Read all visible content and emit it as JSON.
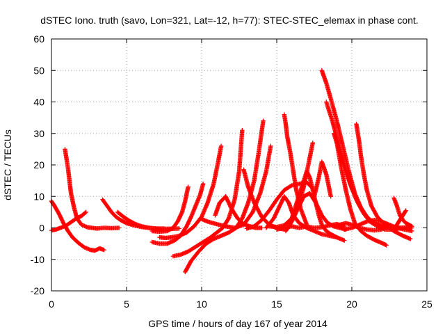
{
  "chart_data": {
    "type": "scatter",
    "title": "dSTEC Iono. truth (savo, Lon=321, Lat=-12, h=77): STEC-STEC_elemax in phase cont.",
    "xlabel": "GPS time / hours of day 167 of year 2014",
    "ylabel": "dSTEC  / TECUs",
    "xlim": [
      0,
      25
    ],
    "ylim": [
      -20,
      60
    ],
    "xticks": [
      0,
      5,
      10,
      15,
      20,
      25
    ],
    "yticks": [
      -20,
      -10,
      0,
      10,
      20,
      30,
      40,
      50,
      60
    ],
    "grid": true,
    "marker": "+",
    "color": "#ff0000",
    "series": [
      {
        "x": [
          0.0,
          0.3,
          0.6,
          1.0,
          1.3,
          1.6,
          2.0,
          2.3
        ],
        "y": [
          -0.8,
          -0.5,
          0.0,
          0.8,
          1.8,
          2.8,
          3.8,
          5.0
        ]
      },
      {
        "x": [
          0.0,
          0.2,
          0.5,
          0.8,
          1.1,
          1.4,
          1.8,
          2.2,
          2.6,
          2.9,
          3.2,
          3.5
        ],
        "y": [
          8.5,
          7.0,
          4.5,
          1.5,
          -1.0,
          -3.0,
          -4.8,
          -6.2,
          -7.0,
          -7.2,
          -6.5,
          -7.0
        ]
      },
      {
        "x": [
          0.9,
          1.0,
          1.1,
          1.2,
          1.3,
          1.5,
          1.7,
          2.0,
          2.4,
          3.0,
          3.5,
          4.0,
          4.5
        ],
        "y": [
          25.0,
          22.0,
          19.0,
          15.0,
          11.0,
          6.5,
          3.0,
          1.0,
          0.2,
          -0.2,
          0.0,
          -0.1,
          0.0
        ]
      },
      {
        "x": [
          3.4,
          3.7,
          4.0,
          4.3,
          4.6,
          5.0,
          5.5,
          6.0,
          6.5,
          7.0,
          7.5,
          8.0,
          8.5
        ],
        "y": [
          9.0,
          7.0,
          5.0,
          3.5,
          2.5,
          1.5,
          0.8,
          0.3,
          0.0,
          -0.2,
          -0.3,
          -0.3,
          -0.2
        ]
      },
      {
        "x": [
          4.4,
          4.8,
          5.2,
          5.6,
          6.0,
          6.5,
          7.0,
          7.5
        ],
        "y": [
          5.0,
          3.5,
          2.2,
          1.2,
          0.5,
          0.0,
          -0.3,
          -0.2
        ]
      },
      {
        "x": [
          6.7,
          7.2,
          7.7,
          8.1,
          8.4,
          8.7,
          8.9,
          9.1
        ],
        "y": [
          -1.0,
          -1.2,
          -1.0,
          0.0,
          2.0,
          5.0,
          8.5,
          13.0
        ]
      },
      {
        "x": [
          6.7,
          7.2,
          7.7,
          8.2,
          8.6,
          9.0,
          9.3,
          9.6,
          9.9,
          10.1
        ],
        "y": [
          -4.5,
          -5.0,
          -5.0,
          -4.0,
          -2.5,
          0.5,
          3.5,
          7.0,
          10.5,
          14.0
        ]
      },
      {
        "x": [
          7.2,
          7.6,
          8.0,
          8.5,
          9.0,
          9.5,
          10.0,
          10.4,
          10.8,
          11.1,
          11.3
        ],
        "y": [
          -3.0,
          -3.2,
          -3.0,
          -2.5,
          -1.5,
          0.5,
          3.5,
          8.0,
          14.0,
          21.0,
          26.0
        ]
      },
      {
        "x": [
          8.1,
          8.6,
          9.1,
          9.6,
          10.1,
          10.6,
          11.0,
          11.4,
          11.8,
          12.2,
          12.5,
          12.7
        ],
        "y": [
          -9.0,
          -8.5,
          -7.5,
          -6.0,
          -4.5,
          -3.0,
          -1.5,
          0.0,
          3.0,
          9.0,
          18.0,
          31.0
        ]
      },
      {
        "x": [
          8.9,
          9.3,
          9.8,
          10.3,
          10.8,
          11.3,
          11.8,
          12.3,
          12.7,
          13.1,
          13.5,
          13.8,
          14.1
        ],
        "y": [
          -14.0,
          -10.5,
          -7.5,
          -5.0,
          -3.5,
          -2.5,
          -1.5,
          0.0,
          3.0,
          8.0,
          15.0,
          24.0,
          34.0
        ]
      },
      {
        "x": [
          9.9,
          10.4,
          11.0,
          11.6,
          12.2,
          12.8,
          13.4,
          13.9,
          14.3,
          14.6
        ],
        "y": [
          3.0,
          2.0,
          1.2,
          0.5,
          0.0,
          1.0,
          5.0,
          11.0,
          18.0,
          26.0
        ]
      },
      {
        "x": [
          10.9,
          11.2,
          11.6,
          12.0,
          12.4,
          12.8,
          13.2,
          13.6,
          14.0
        ],
        "y": [
          4.0,
          8.0,
          10.0,
          6.0,
          3.0,
          1.2,
          0.5,
          0.0,
          0.0
        ]
      },
      {
        "x": [
          12.8,
          13.1,
          13.5,
          14.0,
          14.5,
          15.0,
          15.5
        ],
        "y": [
          18.5,
          13.0,
          8.0,
          3.5,
          1.0,
          0.0,
          -0.5
        ]
      },
      {
        "x": [
          13.0,
          13.5,
          14.0,
          14.5,
          15.0,
          15.5,
          16.0,
          16.5,
          17.0,
          17.3
        ],
        "y": [
          -0.2,
          0.5,
          2.5,
          5.5,
          9.0,
          12.0,
          13.5,
          14.0,
          14.5,
          13.0
        ]
      },
      {
        "x": [
          14.3,
          14.8,
          15.2,
          15.5,
          15.8,
          16.1,
          16.5,
          17.0,
          17.5,
          18.0,
          18.5,
          19.0
        ],
        "y": [
          0.0,
          3.0,
          7.0,
          10.0,
          8.0,
          4.0,
          1.5,
          0.0,
          -1.0,
          -2.0,
          -2.5,
          -3.0
        ]
      },
      {
        "x": [
          15.5,
          15.6,
          15.7,
          15.9,
          16.1,
          16.3,
          16.6,
          17.0
        ],
        "y": [
          36.0,
          33.0,
          29.0,
          24.0,
          18.0,
          12.0,
          6.0,
          1.0
        ]
      },
      {
        "x": [
          14.5,
          15.0,
          15.5,
          16.0,
          16.5,
          16.8,
          17.1,
          17.4
        ],
        "y": [
          0.5,
          0.3,
          0.8,
          3.0,
          8.0,
          13.0,
          20.0,
          27.0
        ]
      },
      {
        "x": [
          15.0,
          15.5,
          16.0,
          16.5,
          17.0,
          17.5,
          18.0,
          18.5,
          19.0,
          19.5
        ],
        "y": [
          -0.5,
          0.0,
          0.5,
          0.0,
          0.5,
          0.0,
          0.2,
          0.8,
          1.2,
          0.5
        ]
      },
      {
        "x": [
          15.6,
          16.0,
          16.4,
          16.8,
          17.2,
          17.6,
          18.0,
          18.4,
          18.8,
          19.2,
          19.6
        ],
        "y": [
          -1.0,
          2.0,
          6.0,
          10.0,
          11.0,
          8.0,
          4.0,
          1.5,
          0.5,
          0.0,
          -0.5
        ]
      },
      {
        "x": [
          16.0,
          16.2,
          16.4,
          16.6,
          16.8,
          17.0,
          17.2,
          17.4,
          17.6,
          17.8,
          18.0,
          18.3,
          18.6,
          19.0,
          19.5
        ],
        "y": [
          3.0,
          6.0,
          9.0,
          12.0,
          15.0,
          18.0,
          16.0,
          12.0,
          8.0,
          4.0,
          1.0,
          -1.0,
          -2.0,
          -3.0,
          -4.0
        ]
      },
      {
        "x": [
          17.5,
          17.8,
          18.0,
          18.3,
          18.6
        ],
        "y": [
          10.0,
          16.0,
          21.0,
          17.0,
          10.0
        ]
      },
      {
        "x": [
          18.0,
          18.3,
          18.6,
          19.0,
          19.4,
          19.8,
          20.2,
          20.6,
          21.0,
          21.5,
          22.0,
          22.5,
          23.0,
          23.5,
          24.0
        ],
        "y": [
          50.0,
          46.0,
          41.0,
          34.0,
          26.0,
          18.0,
          11.0,
          6.5,
          3.5,
          1.5,
          0.5,
          0.0,
          0.0,
          0.1,
          0.0
        ]
      },
      {
        "x": [
          18.3,
          18.7,
          19.1,
          19.5,
          19.9,
          20.3,
          20.7,
          21.1,
          21.5,
          22.0,
          22.5,
          23.0,
          23.5,
          24.0
        ],
        "y": [
          40.0,
          34.0,
          27.0,
          20.0,
          14.0,
          9.0,
          5.5,
          3.0,
          1.5,
          0.5,
          0.0,
          -0.2,
          0.0,
          0.0
        ]
      },
      {
        "x": [
          18.8,
          19.2,
          19.6,
          20.0,
          20.4,
          20.8,
          21.2,
          21.7,
          22.2,
          22.7,
          23.2
        ],
        "y": [
          30.0,
          24.0,
          18.0,
          12.5,
          8.0,
          4.5,
          2.0,
          0.5,
          -0.5,
          -0.5,
          0.0
        ]
      },
      {
        "x": [
          18.8,
          19.2,
          19.6,
          20.0,
          20.5,
          21.0,
          21.5,
          22.0
        ],
        "y": [
          0.5,
          1.0,
          1.5,
          1.0,
          0.0,
          -0.5,
          -0.8,
          -0.5
        ]
      },
      {
        "x": [
          19.0,
          19.3,
          19.6,
          19.9,
          20.2,
          20.6,
          21.0,
          21.5,
          22.0,
          22.3
        ],
        "y": [
          27.0,
          19.0,
          12.0,
          6.0,
          1.5,
          -1.0,
          -2.5,
          -3.8,
          -4.8,
          -5.5
        ]
      },
      {
        "x": [
          20.3,
          20.4,
          20.5,
          20.6,
          20.8,
          21.0,
          21.3,
          21.7,
          22.2,
          22.8,
          23.4,
          23.9
        ],
        "y": [
          33.0,
          30.0,
          27.0,
          23.0,
          17.0,
          12.0,
          7.0,
          3.5,
          1.0,
          -1.0,
          -2.5,
          -3.5
        ]
      },
      {
        "x": [
          19.5,
          20.0,
          20.5,
          21.0,
          21.5,
          22.0,
          22.5,
          23.0,
          23.5,
          24.0
        ],
        "y": [
          -0.5,
          0.0,
          1.0,
          2.0,
          2.5,
          2.0,
          1.0,
          0.0,
          -0.5,
          -1.0
        ]
      },
      {
        "x": [
          22.8,
          23.0,
          23.2,
          23.4,
          23.6,
          23.8,
          24.0
        ],
        "y": [
          9.5,
          7.0,
          4.0,
          2.5,
          1.5,
          1.0,
          0.5
        ]
      },
      {
        "x": [
          22.8,
          23.0,
          23.2,
          23.4,
          23.6
        ],
        "y": [
          -0.5,
          1.0,
          2.5,
          4.0,
          5.5
        ]
      }
    ]
  }
}
